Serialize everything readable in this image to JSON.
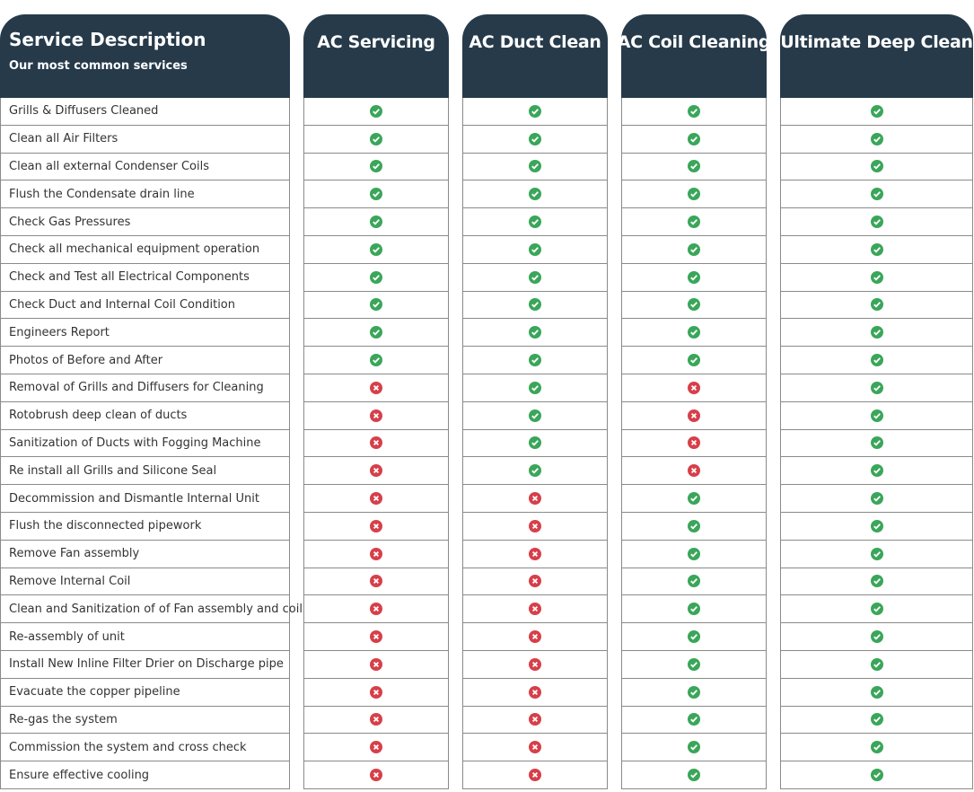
{
  "header": {
    "title": "Service Description",
    "subtitle": "Our most common services"
  },
  "columns": [
    "AC Servicing",
    "AC Duct Clean",
    "AC Coil Cleaning",
    "Ultimate Deep Clean"
  ],
  "rows": [
    {
      "label": "Grills & Diffusers Cleaned",
      "included": [
        true,
        true,
        true,
        true
      ]
    },
    {
      "label": "Clean all Air Filters",
      "included": [
        true,
        true,
        true,
        true
      ]
    },
    {
      "label": "Clean all external Condenser Coils",
      "included": [
        true,
        true,
        true,
        true
      ]
    },
    {
      "label": "Flush the Condensate drain line",
      "included": [
        true,
        true,
        true,
        true
      ]
    },
    {
      "label": "Check Gas Pressures",
      "included": [
        true,
        true,
        true,
        true
      ]
    },
    {
      "label": "Check all mechanical equipment operation",
      "included": [
        true,
        true,
        true,
        true
      ]
    },
    {
      "label": "Check and Test all Electrical Components",
      "included": [
        true,
        true,
        true,
        true
      ]
    },
    {
      "label": "Check Duct and Internal Coil Condition",
      "included": [
        true,
        true,
        true,
        true
      ]
    },
    {
      "label": "Engineers Report",
      "included": [
        true,
        true,
        true,
        true
      ]
    },
    {
      "label": "Photos of Before and After",
      "included": [
        true,
        true,
        true,
        true
      ]
    },
    {
      "label": "Removal of Grills and Diffusers for Cleaning",
      "included": [
        false,
        true,
        false,
        true
      ]
    },
    {
      "label": "Rotobrush deep clean of ducts",
      "included": [
        false,
        true,
        false,
        true
      ]
    },
    {
      "label": "Sanitization of Ducts with Fogging Machine",
      "included": [
        false,
        true,
        false,
        true
      ]
    },
    {
      "label": "Re install all Grills and Silicone Seal",
      "included": [
        false,
        true,
        false,
        true
      ]
    },
    {
      "label": "Decommission and Dismantle Internal Unit",
      "included": [
        false,
        false,
        true,
        true
      ]
    },
    {
      "label": "Flush the disconnected pipework",
      "included": [
        false,
        false,
        true,
        true
      ]
    },
    {
      "label": "Remove Fan assembly",
      "included": [
        false,
        false,
        true,
        true
      ]
    },
    {
      "label": "Remove Internal Coil",
      "included": [
        false,
        false,
        true,
        true
      ]
    },
    {
      "label": "Clean and Sanitization of of Fan assembly and coil",
      "included": [
        false,
        false,
        true,
        true
      ]
    },
    {
      "label": "Re-assembly of unit",
      "included": [
        false,
        false,
        true,
        true
      ]
    },
    {
      "label": "Install New Inline Filter Drier on Discharge pipe",
      "included": [
        false,
        false,
        true,
        true
      ]
    },
    {
      "label": "Evacuate the copper pipeline",
      "included": [
        false,
        false,
        true,
        true
      ]
    },
    {
      "label": "Re-gas the system",
      "included": [
        false,
        false,
        true,
        true
      ]
    },
    {
      "label": "Commission the system and cross check",
      "included": [
        false,
        false,
        true,
        true
      ]
    },
    {
      "label": "Ensure effective cooling",
      "included": [
        false,
        false,
        true,
        true
      ]
    }
  ]
}
